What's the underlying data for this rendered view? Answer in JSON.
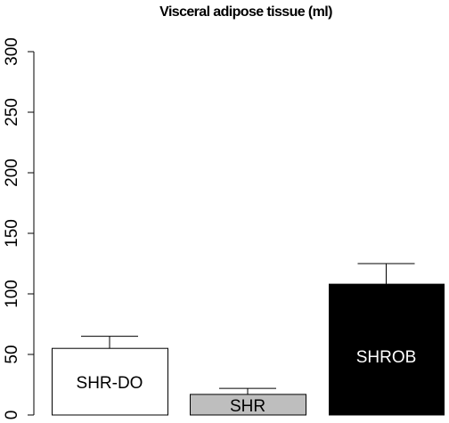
{
  "chart_data": {
    "type": "bar",
    "title": "Visceral adipose tissue (ml)",
    "xlabel": "",
    "ylabel": "",
    "ylim": [
      0,
      300
    ],
    "y_ticks": [
      0,
      50,
      100,
      150,
      200,
      250,
      300
    ],
    "y_tick_labels": [
      "0",
      "50",
      "100",
      "150",
      "200",
      "250",
      "300"
    ],
    "categories": [
      "SHR-DO",
      "SHR",
      "SHROB"
    ],
    "values": [
      55,
      17,
      108
    ],
    "error_upper": [
      65,
      22,
      125
    ],
    "bar_fill_colors": [
      "#ffffff",
      "#bebebe",
      "#000000"
    ],
    "bar_label_colors": [
      "#000000",
      "#000000",
      "#ffffff"
    ],
    "grid": false,
    "legend": "none"
  }
}
